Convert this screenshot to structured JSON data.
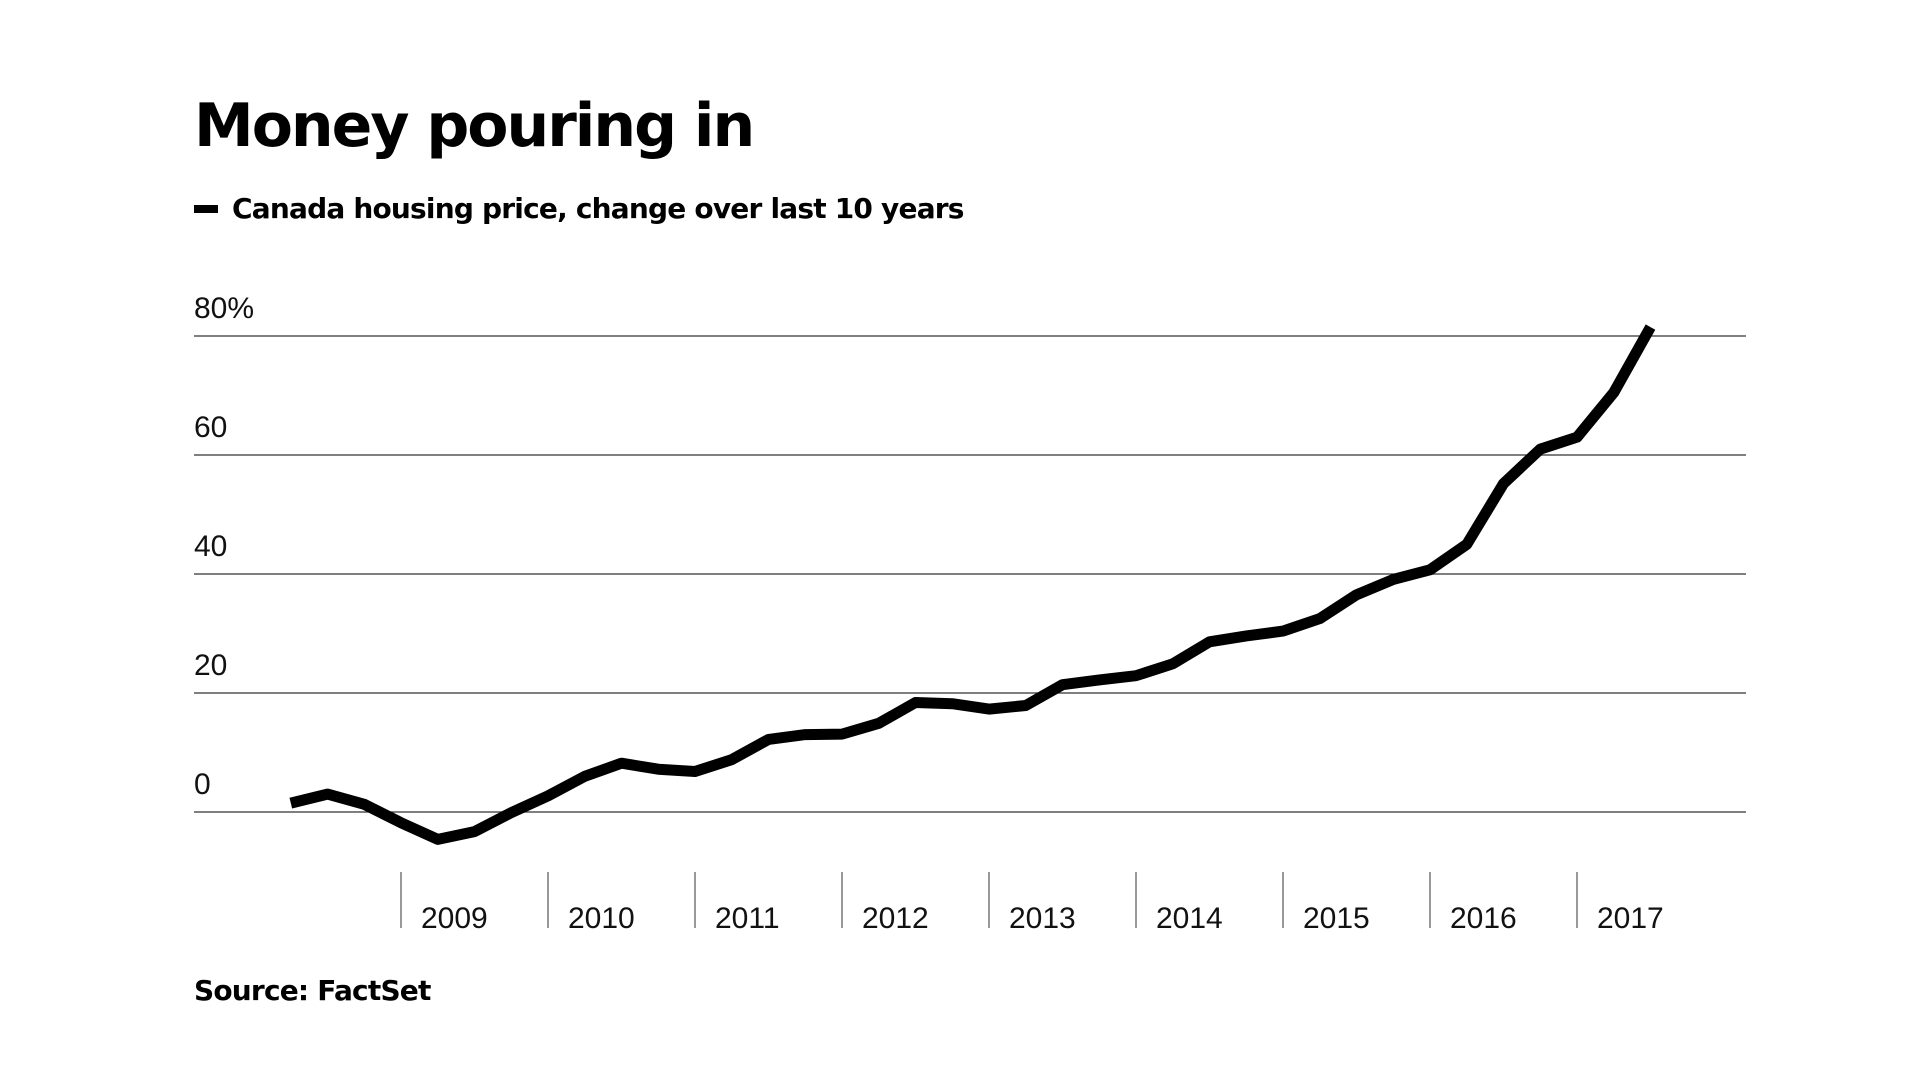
{
  "chart_data": {
    "type": "line",
    "title": "Money pouring in",
    "series": [
      {
        "name": "Canada housing price, change over last 10 years",
        "x": [
          2008.25,
          2008.5,
          2008.75,
          2009.0,
          2009.25,
          2009.5,
          2009.75,
          2010.0,
          2010.25,
          2010.5,
          2010.75,
          2011.0,
          2011.25,
          2011.5,
          2011.75,
          2012.0,
          2012.25,
          2012.5,
          2012.75,
          2013.0,
          2013.25,
          2013.5,
          2013.75,
          2014.0,
          2014.25,
          2014.5,
          2014.75,
          2015.0,
          2015.25,
          2015.5,
          2015.75,
          2016.0,
          2016.25,
          2016.5,
          2016.75,
          2017.0,
          2017.25,
          2017.5
        ],
        "values": [
          1.5,
          3,
          1.3,
          -1.8,
          -4.6,
          -3.3,
          -0.1,
          2.7,
          6.0,
          8.2,
          7.2,
          6.8,
          8.8,
          12.2,
          13.0,
          13.1,
          14.9,
          18.4,
          18.2,
          17.3,
          17.9,
          21.4,
          22.2,
          22.9,
          24.9,
          28.6,
          29.6,
          30.4,
          32.5,
          36.5,
          39.1,
          40.7,
          45.0,
          55.2,
          61.0,
          63.0,
          70.5,
          81.5
        ]
      }
    ],
    "xlim": [
      2008.25,
      2017.5
    ],
    "ylim": [
      -10,
      85
    ],
    "yticks": [
      0,
      20,
      40,
      60,
      80
    ],
    "ytick_labels": [
      "0",
      "20",
      "40",
      "60",
      "80%"
    ],
    "xticks": [
      2009,
      2010,
      2011,
      2012,
      2013,
      2014,
      2015,
      2016,
      2017
    ],
    "xtick_labels": [
      "2009",
      "2010",
      "2011",
      "2012",
      "2013",
      "2014",
      "2015",
      "2016",
      "2017"
    ],
    "grid": true,
    "line_color": "#000000",
    "grid_color": "#333333"
  },
  "legend": {
    "label": "Canada housing price, change over last 10 years"
  },
  "source": "Source: FactSet"
}
